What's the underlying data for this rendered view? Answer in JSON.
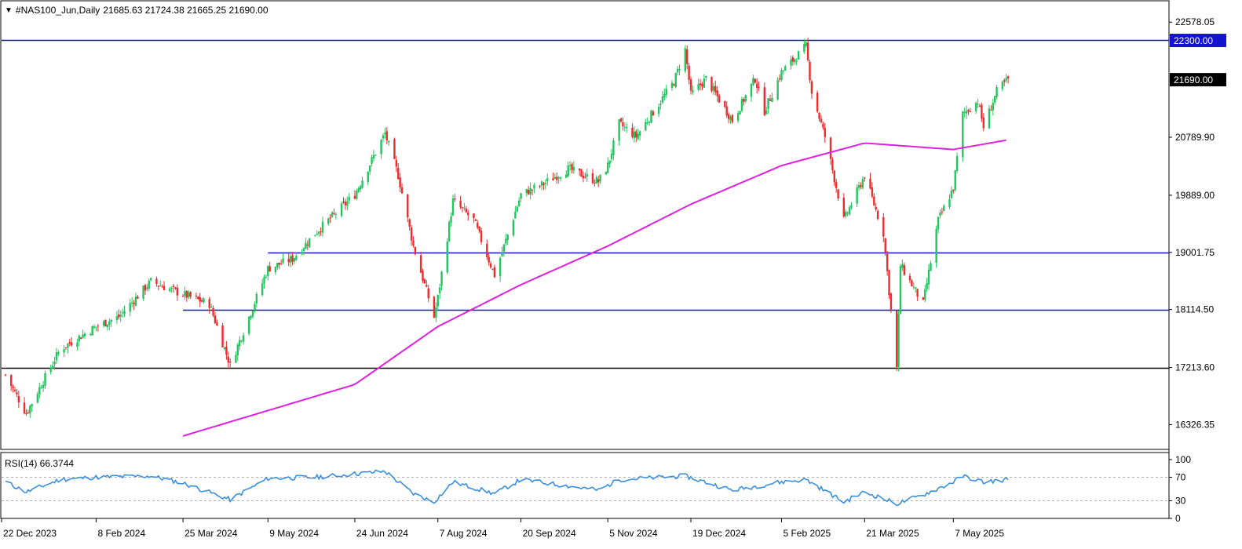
{
  "header": {
    "menu_arrow": "▼",
    "symbol": "#NAS100_Jun,Daily",
    "ohlc": "21685.63 21724.38 21665.25 21690.00"
  },
  "colors": {
    "bull": "#22c55e",
    "bear": "#ef2b2b",
    "ma": "#e020e0",
    "hline_blue": "#1414d0",
    "hline_black": "#000000",
    "rsi_line": "#3b8fe0",
    "rsi_levels": "#b0b0b0",
    "price_tag_blue_bg": "#1414d0",
    "price_tag_black_bg": "#000000"
  },
  "price_axis": {
    "ticks": [
      "22578.05",
      "20789.90",
      "19889.00",
      "19001.75",
      "18114.50",
      "17213.60",
      "16326.35"
    ],
    "tags": [
      {
        "label": "22300.00",
        "value": 22300,
        "style": "blue"
      },
      {
        "label": "21690.00",
        "value": 21690,
        "style": "black"
      }
    ]
  },
  "time_axis": {
    "labels": [
      "22 Dec 2023",
      "8 Feb 2024",
      "25 Mar 2024",
      "9 May 2024",
      "24 Jun 2024",
      "7 Aug 2024",
      "20 Sep 2024",
      "5 Nov 2024",
      "19 Dec 2024",
      "5 Feb 2025",
      "21 Mar 2025",
      "7 May 2025"
    ]
  },
  "rsi": {
    "label": "RSI(14) 66.3744",
    "ticks": [
      "100",
      "70",
      "30",
      "0"
    ]
  },
  "chart_data": {
    "type": "candlestick",
    "title": "#NAS100_Jun,Daily",
    "ylim": [
      16100,
      22800
    ],
    "ma_name": "",
    "horizontal_lines": [
      {
        "value": 22300,
        "color": "blue"
      },
      {
        "value": 19001.75,
        "color": "blue",
        "from": "9 May 2024"
      },
      {
        "value": 18114.5,
        "color": "blue",
        "from": "25 Mar 2024"
      },
      {
        "value": 17213.6,
        "color": "black"
      }
    ],
    "anchors": [
      {
        "date": "22 Dec 2023",
        "close": 17100
      },
      {
        "date": "2 Jan 2024",
        "close": 16500
      },
      {
        "date": "10 Jan 2024",
        "close": 16950
      },
      {
        "date": "20 Jan 2024",
        "close": 17500
      },
      {
        "date": "8 Feb 2024",
        "close": 17850
      },
      {
        "date": "20 Feb 2024",
        "close": 18000
      },
      {
        "date": "8 Mar 2024",
        "close": 18550
      },
      {
        "date": "25 Mar 2024",
        "close": 18350
      },
      {
        "date": "8 Apr 2024",
        "close": 18200
      },
      {
        "date": "19 Apr 2024",
        "close": 17250
      },
      {
        "date": "25 Apr 2024",
        "close": 17700
      },
      {
        "date": "9 May 2024",
        "close": 18750
      },
      {
        "date": "22 May 2024",
        "close": 18900
      },
      {
        "date": "3 Jun 2024",
        "close": 19300
      },
      {
        "date": "24 Jun 2024",
        "close": 19900
      },
      {
        "date": "10 Jul 2024",
        "close": 20850
      },
      {
        "date": "17 Jul 2024",
        "close": 20200
      },
      {
        "date": "25 Jul 2024",
        "close": 19100
      },
      {
        "date": "5 Aug 2024",
        "close": 18000
      },
      {
        "date": "7 Aug 2024",
        "close": 18300
      },
      {
        "date": "15 Aug 2024",
        "close": 19800
      },
      {
        "date": "26 Aug 2024",
        "close": 19500
      },
      {
        "date": "6 Sep 2024",
        "close": 18650
      },
      {
        "date": "20 Sep 2024",
        "close": 19900
      },
      {
        "date": "1 Oct 2024",
        "close": 20050
      },
      {
        "date": "15 Oct 2024",
        "close": 20300
      },
      {
        "date": "31 Oct 2024",
        "close": 20100
      },
      {
        "date": "5 Nov 2024",
        "close": 20350
      },
      {
        "date": "11 Nov 2024",
        "close": 21000
      },
      {
        "date": "20 Nov 2024",
        "close": 20800
      },
      {
        "date": "10 Dec 2024",
        "close": 21650
      },
      {
        "date": "16 Dec 2024",
        "close": 22150
      },
      {
        "date": "19 Dec 2024",
        "close": 21450
      },
      {
        "date": "27 Dec 2024",
        "close": 21700
      },
      {
        "date": "10 Jan 2025",
        "close": 21050
      },
      {
        "date": "22 Jan 2025",
        "close": 21700
      },
      {
        "date": "27 Jan 2025",
        "close": 21200
      },
      {
        "date": "5 Feb 2025",
        "close": 21800
      },
      {
        "date": "18 Feb 2025",
        "close": 22200
      },
      {
        "date": "21 Feb 2025",
        "close": 21500
      },
      {
        "date": "28 Feb 2025",
        "close": 20800
      },
      {
        "date": "10 Mar 2025",
        "close": 19500
      },
      {
        "date": "21 Mar 2025",
        "close": 20200
      },
      {
        "date": "31 Mar 2025",
        "close": 19300
      },
      {
        "date": "7 Apr 2025",
        "close": 17200
      },
      {
        "date": "9 Apr 2025",
        "close": 18800
      },
      {
        "date": "21 Apr 2025",
        "close": 18200
      },
      {
        "date": "29 Apr 2025",
        "close": 19500
      },
      {
        "date": "7 May 2025",
        "close": 20000
      },
      {
        "date": "12 May 2025",
        "close": 21150
      },
      {
        "date": "20 May 2025",
        "close": 21350
      },
      {
        "date": "23 May 2025",
        "close": 20950
      },
      {
        "date": "30 May 2025",
        "close": 21500
      },
      {
        "date": "5 Jun 2025",
        "close": 21690
      }
    ],
    "ma_points": [
      {
        "date": "25 Mar 2024",
        "value": 16150
      },
      {
        "date": "24 Jun 2024",
        "value": 16950
      },
      {
        "date": "7 Aug 2024",
        "value": 17850
      },
      {
        "date": "20 Sep 2024",
        "value": 18500
      },
      {
        "date": "5 Nov 2024",
        "value": 19100
      },
      {
        "date": "19 Dec 2024",
        "value": 19750
      },
      {
        "date": "5 Feb 2025",
        "value": 20350
      },
      {
        "date": "21 Mar 2025",
        "value": 20700
      },
      {
        "date": "7 May 2025",
        "value": 20600
      },
      {
        "date": "5 Jun 2025",
        "value": 20750
      }
    ],
    "rsi_anchors": [
      {
        "date": "22 Dec 2023",
        "value": 62
      },
      {
        "date": "2 Jan 2024",
        "value": 45
      },
      {
        "date": "20 Jan 2024",
        "value": 66
      },
      {
        "date": "8 Feb 2024",
        "value": 70
      },
      {
        "date": "8 Mar 2024",
        "value": 72
      },
      {
        "date": "25 Mar 2024",
        "value": 60
      },
      {
        "date": "19 Apr 2024",
        "value": 32
      },
      {
        "date": "9 May 2024",
        "value": 68
      },
      {
        "date": "3 Jun 2024",
        "value": 70
      },
      {
        "date": "10 Jul 2024",
        "value": 80
      },
      {
        "date": "25 Jul 2024",
        "value": 42
      },
      {
        "date": "5 Aug 2024",
        "value": 28
      },
      {
        "date": "15 Aug 2024",
        "value": 62
      },
      {
        "date": "6 Sep 2024",
        "value": 42
      },
      {
        "date": "20 Sep 2024",
        "value": 66
      },
      {
        "date": "31 Oct 2024",
        "value": 48
      },
      {
        "date": "11 Nov 2024",
        "value": 66
      },
      {
        "date": "16 Dec 2024",
        "value": 72
      },
      {
        "date": "10 Jan 2025",
        "value": 48
      },
      {
        "date": "5 Feb 2025",
        "value": 62
      },
      {
        "date": "18 Feb 2025",
        "value": 66
      },
      {
        "date": "10 Mar 2025",
        "value": 28
      },
      {
        "date": "21 Mar 2025",
        "value": 45
      },
      {
        "date": "7 Apr 2025",
        "value": 25
      },
      {
        "date": "21 Apr 2025",
        "value": 40
      },
      {
        "date": "7 May 2025",
        "value": 62
      },
      {
        "date": "12 May 2025",
        "value": 72
      },
      {
        "date": "23 May 2025",
        "value": 62
      },
      {
        "date": "5 Jun 2025",
        "value": 66
      }
    ]
  }
}
